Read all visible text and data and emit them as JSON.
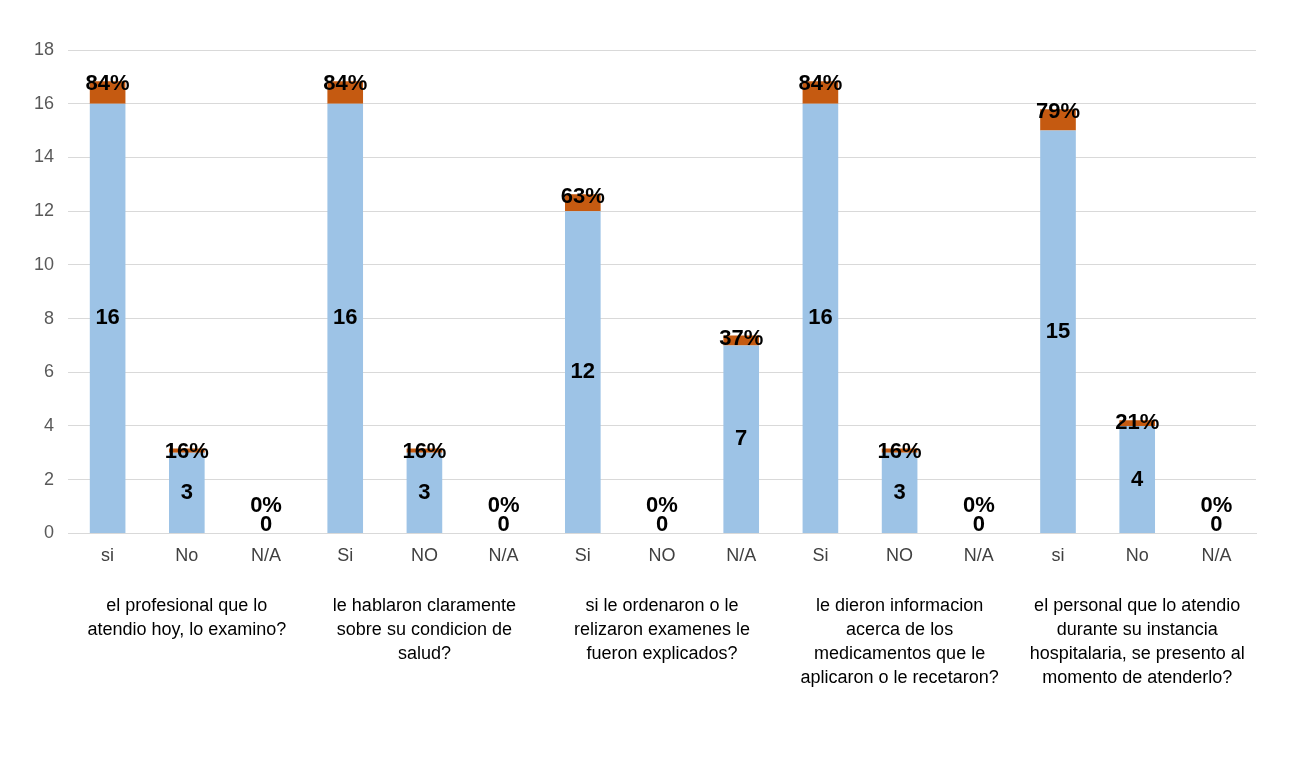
{
  "chart_data": {
    "type": "bar",
    "stacked": true,
    "categories": [
      "si",
      "No",
      "N/A",
      "Si",
      "NO",
      "N/A",
      "Si",
      "NO",
      "N/A",
      "Si",
      "NO",
      "N/A",
      "si",
      "No",
      "N/A"
    ],
    "series": [
      {
        "color": "#9dc3e6",
        "values": [
          16,
          3,
          0,
          16,
          3,
          0,
          12,
          0,
          7,
          16,
          3,
          0,
          15,
          4,
          0
        ],
        "value_labels": [
          "16",
          "3",
          "0",
          "16",
          "3",
          "0",
          "12",
          "0",
          "7",
          "16",
          "3",
          "0",
          "15",
          "4",
          "0"
        ]
      },
      {
        "color": "#c55a11",
        "values": [
          0.84,
          0.16,
          0,
          0.84,
          0.16,
          0,
          0.63,
          0,
          0.37,
          0.84,
          0.16,
          0,
          0.79,
          0.21,
          0
        ],
        "value_labels": [
          "84%",
          "16%",
          "0%",
          "84%",
          "16%",
          "0%",
          "63%",
          "0%",
          "37%",
          "84%",
          "16%",
          "0%",
          "79%",
          "21%",
          "0%"
        ]
      }
    ],
    "ylim": [
      0,
      18
    ],
    "yticks": [
      0,
      2,
      4,
      6,
      8,
      10,
      12,
      14,
      16,
      18
    ],
    "grid": "y",
    "legend": false,
    "annotations": [
      "el profesional que lo atendio hoy, lo examino?",
      "le hablaron claramente sobre su condicion de salud?",
      "si le ordenaron o le relizaron examenes le fueron explicados?",
      "le dieron informacion acerca de los medicamentos que le aplicaron o le recetaron?",
      "el personal que lo atendio durante su instancia hospitalaria, se presento al momento de atenderlo?"
    ]
  }
}
